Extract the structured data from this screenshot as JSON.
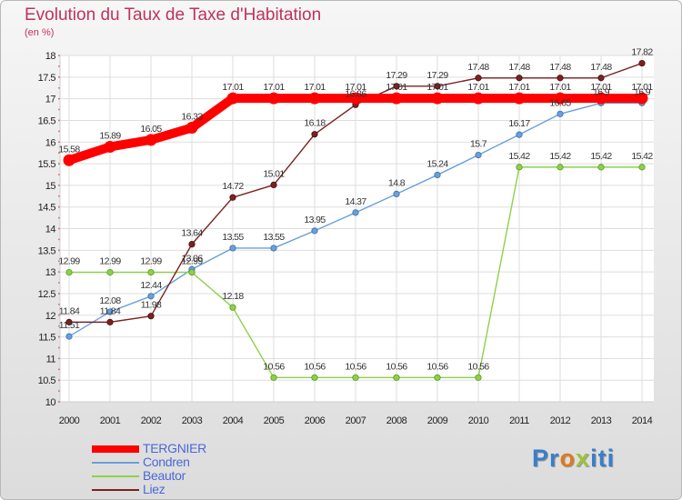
{
  "title": "Evolution du Taux de Taxe d'Habitation",
  "subtitle": "(en %)",
  "logo": {
    "letters": [
      "P",
      "r",
      "o",
      "x",
      "i",
      "t",
      "i"
    ],
    "colors": [
      "#3a7ec9",
      "#3a7ec9",
      "#e07a1a",
      "#9fc23a",
      "#3a7ec9",
      "#3a7ec9",
      "#3a7ec9"
    ]
  },
  "chart_data": {
    "type": "line",
    "x": [
      2000,
      2001,
      2002,
      2003,
      2004,
      2005,
      2006,
      2007,
      2008,
      2009,
      2010,
      2011,
      2012,
      2013,
      2014
    ],
    "ylim": [
      10,
      18
    ],
    "yticks": [
      10,
      10.5,
      11,
      11.5,
      12,
      12.5,
      13,
      13.5,
      14,
      14.5,
      15,
      15.5,
      16,
      16.5,
      17,
      17.5,
      18
    ],
    "grid": true,
    "legend_position": "bottom-left",
    "series": [
      {
        "name": "TERGNIER",
        "color": "#ff0000",
        "values": [
          15.58,
          15.89,
          16.05,
          16.33,
          17.01,
          17.01,
          17.01,
          17.01,
          17.01,
          17.01,
          17.01,
          17.01,
          17.01,
          17.01,
          17.01
        ],
        "labels": [
          "15.58",
          "15.89",
          "16.05",
          "16.33",
          "17.01",
          "17.01",
          "17.01",
          "17.01",
          "17.01",
          "17.01",
          "17.01",
          "17.01",
          "17.01",
          "17.01",
          "17.01"
        ]
      },
      {
        "name": "Condren",
        "color": "#6aa0d8",
        "values": [
          11.51,
          12.08,
          12.44,
          13.06,
          13.55,
          13.55,
          13.95,
          14.37,
          14.8,
          15.24,
          15.7,
          16.17,
          16.65,
          16.9,
          16.9
        ],
        "labels": [
          "11.51",
          "12.08",
          "12.44",
          "13.06",
          "13.55",
          "13.55",
          "13.95",
          "14.37",
          "14.8",
          "15.24",
          "15.7",
          "16.17",
          "16.65",
          "16.9",
          "16.9"
        ]
      },
      {
        "name": "Beautor",
        "color": "#8fd04a",
        "values": [
          12.99,
          12.99,
          12.99,
          12.99,
          12.18,
          10.56,
          10.56,
          10.56,
          10.56,
          10.56,
          10.56,
          15.42,
          15.42,
          15.42,
          15.42
        ],
        "labels": [
          "12.99",
          "12.99",
          "12.99",
          "12.99",
          "12.18",
          "10.56",
          "10.56",
          "10.56",
          "10.56",
          "10.56",
          "10.56",
          "15.42",
          "15.42",
          "15.42",
          "15.42"
        ]
      },
      {
        "name": "Liez",
        "color": "#7a2222",
        "values": [
          11.84,
          11.84,
          11.98,
          13.64,
          14.72,
          15.01,
          16.18,
          16.86,
          17.29,
          17.29,
          17.48,
          17.48,
          17.48,
          17.48,
          17.82
        ],
        "labels": [
          "11.84",
          "11.84",
          "11.98",
          "13.64",
          "14.72",
          "15.01",
          "16.18",
          "16.86",
          "17.29",
          "17.29",
          "17.48",
          "17.48",
          "17.48",
          "17.48",
          "17.82"
        ]
      }
    ]
  }
}
